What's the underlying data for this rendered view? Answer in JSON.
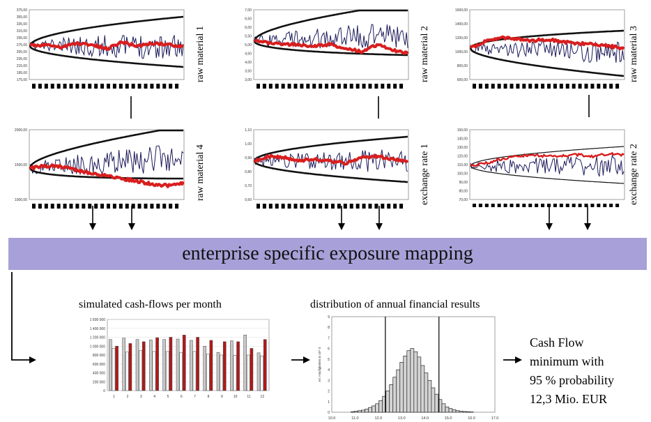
{
  "panels": [
    {
      "id": "rm1",
      "label": "raw material 1",
      "yticks": [
        "375,00",
        "355,00",
        "335,00",
        "315,00",
        "295,00",
        "275,00",
        "255,00",
        "235,00",
        "215,00",
        "195,00",
        "175,00"
      ]
    },
    {
      "id": "rm2",
      "label": "raw material 2",
      "yticks": [
        "7,00",
        "6,50",
        "6,00",
        "5,50",
        "5,00",
        "4,50",
        "4,00",
        "3,50",
        "3,00"
      ]
    },
    {
      "id": "rm3",
      "label": "raw material 3",
      "yticks": [
        "1600,00",
        "1400,00",
        "1200,00",
        "1000,00",
        "800,00",
        "600,00"
      ]
    },
    {
      "id": "rm4",
      "label": "raw material 4",
      "yticks": [
        "2000,00",
        "1500,00",
        "1000,00"
      ]
    },
    {
      "id": "fx1",
      "label": "exchange rate 1",
      "yticks": [
        "1,10",
        "1,00",
        "0,90",
        "0,80",
        "0,70",
        "0,60"
      ]
    },
    {
      "id": "fx2",
      "label": "exchange rate 2",
      "yticks": [
        "150,00",
        "140,00",
        "130,00",
        "120,00",
        "110,00",
        "100,00",
        "90,00",
        "80,00",
        "70,00"
      ]
    }
  ],
  "banner": {
    "text": "enterprise specific exposure mapping"
  },
  "cashflow": {
    "caption": "simulated cash-flows per month",
    "chart_data": {
      "type": "bar",
      "categories": [
        "1",
        "2",
        "3",
        "4",
        "5",
        "6",
        "7",
        "8",
        "9",
        "10",
        "11",
        "12"
      ],
      "yticks": [
        "1 600 000",
        "1 400 000",
        "1 200 000",
        "1 000 000",
        "800 000",
        "600 000",
        "400 000",
        "200 000",
        "0"
      ],
      "ylim": [
        0,
        1600000
      ],
      "series": [
        {
          "values": [
            1150000,
            1180000,
            1150000,
            1140000,
            1150000,
            1160000,
            1130000,
            1000000,
            860000,
            1120000,
            1250000,
            850000
          ],
          "color": "#c8c8c8"
        },
        {
          "values": [
            950000,
            870000,
            900000,
            880000,
            880000,
            860000,
            880000,
            820000,
            800000,
            790000,
            800000,
            780000
          ],
          "color": "#ffffff"
        },
        {
          "values": [
            1000000,
            1060000,
            1100000,
            1190000,
            1200000,
            1250000,
            1200000,
            1130000,
            1100000,
            1100000,
            950000,
            1150000
          ],
          "color": "#b01818"
        }
      ]
    }
  },
  "distribution": {
    "caption": "distribution of annual financial results",
    "ylabel": "rel. Häufigkeiten in 10^-3",
    "chart_data": {
      "type": "bar",
      "xticks": [
        "10.0",
        "11.0",
        "12.0",
        "13.0",
        "14.0",
        "15.0",
        "16.0",
        "17.0"
      ],
      "yticks": [
        "9",
        "8",
        "7",
        "6",
        "5",
        "4",
        "3",
        "2",
        "1",
        "0"
      ],
      "xlim": [
        10,
        17
      ],
      "ylim": [
        0,
        9
      ],
      "x": [
        10.9,
        11.05,
        11.2,
        11.35,
        11.5,
        11.65,
        11.8,
        11.95,
        12.1,
        12.25,
        12.4,
        12.55,
        12.7,
        12.85,
        13.0,
        13.15,
        13.3,
        13.45,
        13.6,
        13.75,
        13.9,
        14.05,
        14.2,
        14.35,
        14.5,
        14.65,
        14.8,
        14.95,
        15.1,
        15.25,
        15.4,
        15.55,
        15.7,
        15.85,
        16.0
      ],
      "values": [
        0.05,
        0.1,
        0.15,
        0.2,
        0.3,
        0.45,
        0.6,
        0.8,
        1.1,
        1.5,
        2.0,
        2.6,
        3.3,
        4.0,
        4.7,
        5.3,
        5.8,
        6.0,
        5.7,
        5.2,
        4.4,
        3.7,
        3.0,
        2.3,
        1.7,
        1.2,
        0.8,
        0.5,
        0.35,
        0.25,
        0.15,
        0.1,
        0.07,
        0.05,
        0.03
      ],
      "markers": [
        12.3,
        14.6
      ]
    }
  },
  "result": {
    "lines": [
      "Cash Flow",
      "minimum with",
      "95 % probability",
      "12,3 Mio. EUR"
    ]
  }
}
